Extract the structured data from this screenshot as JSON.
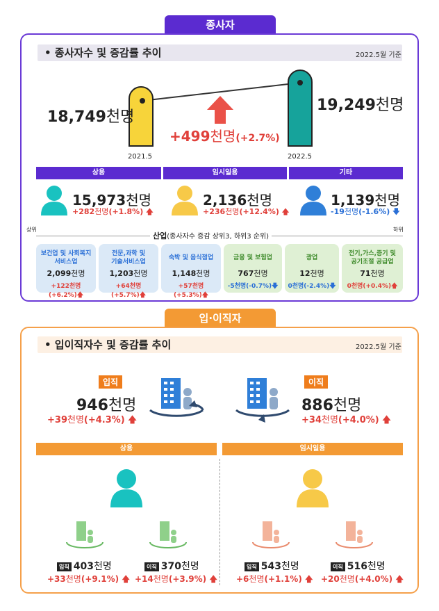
{
  "top": {
    "tab_title": "종사자",
    "section_title": "• 종사자수 및 증감률 추이",
    "date": "2022.5월 기준",
    "left_value": "18,749",
    "left_unit": "천명",
    "left_label": "2021.5",
    "right_value": "19,249",
    "right_unit": "천명",
    "right_label": "2022.5",
    "change_value": "+499",
    "change_unit": "천명",
    "change_pct": "(+2.7%)",
    "cylinder_values": [
      18749,
      19249
    ],
    "groups": [
      {
        "label": "상용",
        "value": "15,973",
        "unit": "천명",
        "change": "+282",
        "change_unit": "천명",
        "pct": "(+1.8%)",
        "dir": "up"
      },
      {
        "label": "임시일용",
        "value": "2,136",
        "unit": "천명",
        "change": "+236",
        "change_unit": "천명",
        "pct": "(+12.4%)",
        "dir": "up"
      },
      {
        "label": "기타",
        "value": "1,139",
        "unit": "천명",
        "change": "-19",
        "change_unit": "천명",
        "pct": "(-1.6%)",
        "dir": "down"
      }
    ],
    "industry_title": "산업",
    "industry_sub": "(종사자수 증감 상위3, 하위3 순위)",
    "rank_high": "상위",
    "rank_low": "하위",
    "industries": [
      {
        "name": "보건업 및 사회복지\n서비스업",
        "value": "2,099",
        "unit": "천명",
        "change": "+122천명(+6.2%)",
        "dir": "up"
      },
      {
        "name": "전문,과학 및\n기술서비스업",
        "value": "1,203",
        "unit": "천명",
        "change": "+64천명(+5.7%)",
        "dir": "up"
      },
      {
        "name": "숙박 및 음식점업",
        "value": "1,148",
        "unit": "천명",
        "change": "+57천명(+5.3%)",
        "dir": "up"
      },
      {
        "name": "금융 및 보험업",
        "value": "767",
        "unit": "천명",
        "change": "-5천명(-0.7%)",
        "dir": "down"
      },
      {
        "name": "광업",
        "value": "12",
        "unit": "천명",
        "change": "0천명(-2.4%)",
        "dir": "down"
      },
      {
        "name": "전기,가스,증기 및\n공기조절 공급업",
        "value": "71",
        "unit": "천명",
        "change": "0천명(+0.4%)",
        "dir": "up"
      }
    ]
  },
  "bottom": {
    "tab_title": "입·이직자",
    "section_title": "• 입이직자수 및 증감률 추이",
    "date": "2022.5월 기준",
    "hire": {
      "tag": "입직",
      "value": "946",
      "unit": "천명",
      "change": "+39",
      "change_unit": "천명",
      "pct": "(+4.3%)"
    },
    "sep": {
      "tag": "이직",
      "value": "886",
      "unit": "천명",
      "change": "+34",
      "change_unit": "천명",
      "pct": "(+4.0%)"
    },
    "regular": {
      "label": "상용",
      "hire": {
        "tag": "입직",
        "value": "403",
        "unit": "천명",
        "change": "+33",
        "change_unit": "천명",
        "pct": "(+9.1%)"
      },
      "sep": {
        "tag": "이직",
        "value": "370",
        "unit": "천명",
        "change": "+14",
        "change_unit": "천명",
        "pct": "(+3.9%)"
      }
    },
    "temp": {
      "label": "임시일용",
      "hire": {
        "tag": "입직",
        "value": "543",
        "unit": "천명",
        "change": "+6",
        "change_unit": "천명",
        "pct": "(+1.1%)"
      },
      "sep": {
        "tag": "이직",
        "value": "516",
        "unit": "천명",
        "change": "+20",
        "change_unit": "천명",
        "pct": "(+4.0%)"
      }
    }
  },
  "colors": {
    "purple": "#5b2bd0",
    "orange": "#f39a34",
    "teal": "#19c2c0",
    "yellow": "#f7c948",
    "blue": "#2f7fd8",
    "red": "#e0403a"
  }
}
